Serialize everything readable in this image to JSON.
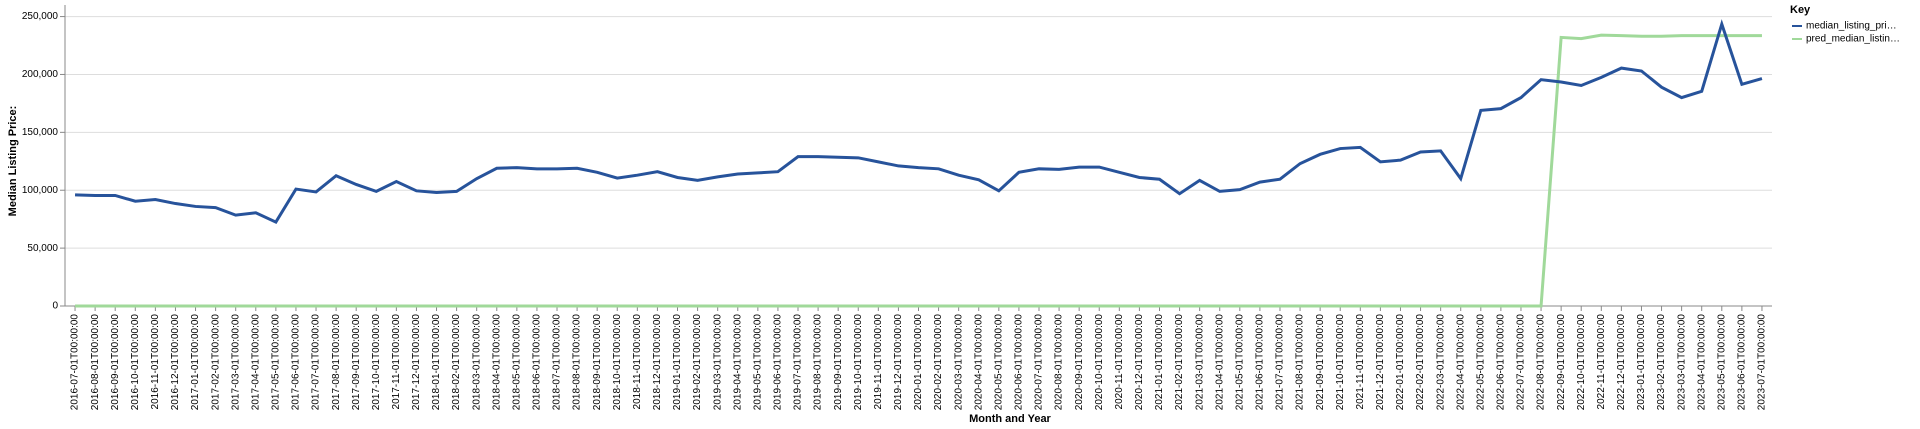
{
  "chart_data": {
    "type": "line",
    "x_label": "Month and Year",
    "y_label": "Median Listing Price:",
    "legend_title": "Key",
    "legend": "top-right",
    "grid": true,
    "categories": [
      "2016-07-01T00:00:00",
      "2016-08-01T00:00:00",
      "2016-09-01T00:00:00",
      "2016-10-01T00:00:00",
      "2016-11-01T00:00:00",
      "2016-12-01T00:00:00",
      "2017-01-01T00:00:00",
      "2017-02-01T00:00:00",
      "2017-03-01T00:00:00",
      "2017-04-01T00:00:00",
      "2017-05-01T00:00:00",
      "2017-06-01T00:00:00",
      "2017-07-01T00:00:00",
      "2017-08-01T00:00:00",
      "2017-09-01T00:00:00",
      "2017-10-01T00:00:00",
      "2017-11-01T00:00:00",
      "2017-12-01T00:00:00",
      "2018-01-01T00:00:00",
      "2018-02-01T00:00:00",
      "2018-03-01T00:00:00",
      "2018-04-01T00:00:00",
      "2018-05-01T00:00:00",
      "2018-06-01T00:00:00",
      "2018-07-01T00:00:00",
      "2018-08-01T00:00:00",
      "2018-09-01T00:00:00",
      "2018-10-01T00:00:00",
      "2018-11-01T00:00:00",
      "2018-12-01T00:00:00",
      "2019-01-01T00:00:00",
      "2019-02-01T00:00:00",
      "2019-03-01T00:00:00",
      "2019-04-01T00:00:00",
      "2019-05-01T00:00:00",
      "2019-06-01T00:00:00",
      "2019-07-01T00:00:00",
      "2019-08-01T00:00:00",
      "2019-09-01T00:00:00",
      "2019-10-01T00:00:00",
      "2019-11-01T00:00:00",
      "2019-12-01T00:00:00",
      "2020-01-01T00:00:00",
      "2020-02-01T00:00:00",
      "2020-03-01T00:00:00",
      "2020-04-01T00:00:00",
      "2020-05-01T00:00:00",
      "2020-06-01T00:00:00",
      "2020-07-01T00:00:00",
      "2020-08-01T00:00:00",
      "2020-09-01T00:00:00",
      "2020-10-01T00:00:00",
      "2020-11-01T00:00:00",
      "2020-12-01T00:00:00",
      "2021-01-01T00:00:00",
      "2021-02-01T00:00:00",
      "2021-03-01T00:00:00",
      "2021-04-01T00:00:00",
      "2021-05-01T00:00:00",
      "2021-06-01T00:00:00",
      "2021-07-01T00:00:00",
      "2021-08-01T00:00:00",
      "2021-09-01T00:00:00",
      "2021-10-01T00:00:00",
      "2021-11-01T00:00:00",
      "2021-12-01T00:00:00",
      "2022-01-01T00:00:00",
      "2022-02-01T00:00:00",
      "2022-03-01T00:00:00",
      "2022-04-01T00:00:00",
      "2022-05-01T00:00:00",
      "2022-06-01T00:00:00",
      "2022-07-01T00:00:00",
      "2022-08-01T00:00:00",
      "2022-09-01T00:00:00",
      "2022-10-01T00:00:00",
      "2022-11-01T00:00:00",
      "2022-12-01T00:00:00",
      "2023-01-01T00:00:00",
      "2023-02-01T00:00:00",
      "2023-03-01T00:00:00",
      "2023-04-01T00:00:00",
      "2023-05-01T00:00:00",
      "2023-06-01T00:00:00",
      "2023-07-01T00:00:00"
    ],
    "series": [
      {
        "name": "median_listing_pri…",
        "color": "#27539b",
        "values": [
          96000,
          95500,
          95500,
          90500,
          92000,
          88500,
          86000,
          85000,
          78500,
          80500,
          72500,
          101000,
          98500,
          112500,
          105000,
          99000,
          107500,
          99500,
          98000,
          99000,
          110000,
          119000,
          119500,
          118500,
          118500,
          119000,
          115500,
          110500,
          113000,
          116000,
          111000,
          108500,
          111500,
          114000,
          115000,
          116000,
          129000,
          129000,
          128500,
          128000,
          124500,
          121000,
          119500,
          118500,
          113000,
          109000,
          99500,
          115500,
          118500,
          118000,
          120000,
          120000,
          115500,
          111000,
          109500,
          97000,
          108500,
          99000,
          100500,
          107000,
          109500,
          123000,
          131000,
          136000,
          137000,
          124500,
          126000,
          133000,
          134000,
          110000,
          169000,
          170500,
          180000,
          195500,
          193500,
          190500,
          197500,
          205500,
          203000,
          189000,
          180000,
          185500,
          243500,
          191500,
          196500
        ]
      },
      {
        "name": "pred_median_listin…",
        "color": "#a0d99a",
        "values": [
          0,
          0,
          0,
          0,
          0,
          0,
          0,
          0,
          0,
          0,
          0,
          0,
          0,
          0,
          0,
          0,
          0,
          0,
          0,
          0,
          0,
          0,
          0,
          0,
          0,
          0,
          0,
          0,
          0,
          0,
          0,
          0,
          0,
          0,
          0,
          0,
          0,
          0,
          0,
          0,
          0,
          0,
          0,
          0,
          0,
          0,
          0,
          0,
          0,
          0,
          0,
          0,
          0,
          0,
          0,
          0,
          0,
          0,
          0,
          0,
          0,
          0,
          0,
          0,
          0,
          0,
          0,
          0,
          0,
          0,
          0,
          0,
          0,
          0,
          232000,
          231000,
          234000,
          233500,
          233000,
          233000,
          233500,
          233500,
          233500,
          233500,
          233500
        ]
      }
    ],
    "ylim": [
      0,
      260000
    ],
    "yticks": [
      0,
      {
        "value": 50000,
        "label": "50,000"
      },
      {
        "value": 100000,
        "label": "100,000"
      },
      {
        "value": 150000,
        "label": "150,000"
      },
      {
        "value": 200000,
        "label": "200,000"
      },
      {
        "value": 250000,
        "label": "250,000"
      }
    ]
  }
}
